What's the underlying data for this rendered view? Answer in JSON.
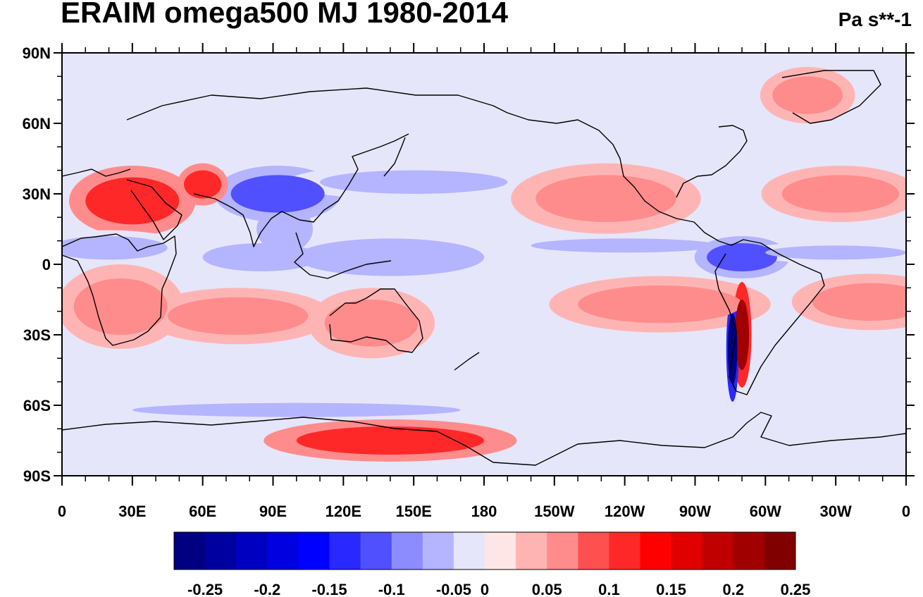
{
  "title": "ERAIM omega500 MJ 1980-2014",
  "units": "Pa s**-1",
  "map": {
    "projection": "cylindrical-equidistant",
    "center_longitude": 180,
    "lat_range": [
      -90,
      90
    ],
    "lon_range": [
      0,
      360
    ],
    "y_tick_labels": [
      {
        "lat": 90,
        "label": "90N"
      },
      {
        "lat": 60,
        "label": "60N"
      },
      {
        "lat": 30,
        "label": "30N"
      },
      {
        "lat": 0,
        "label": "0"
      },
      {
        "lat": -30,
        "label": "30S"
      },
      {
        "lat": -60,
        "label": "60S"
      },
      {
        "lat": -90,
        "label": "90S"
      }
    ],
    "x_tick_labels": [
      {
        "lon": 0,
        "label": "0"
      },
      {
        "lon": 30,
        "label": "30E"
      },
      {
        "lon": 60,
        "label": "60E"
      },
      {
        "lon": 90,
        "label": "90E"
      },
      {
        "lon": 120,
        "label": "120E"
      },
      {
        "lon": 150,
        "label": "150E"
      },
      {
        "lon": 180,
        "label": "180"
      },
      {
        "lon": 210,
        "label": "150W"
      },
      {
        "lon": 240,
        "label": "120W"
      },
      {
        "lon": 270,
        "label": "90W"
      },
      {
        "lon": 300,
        "label": "60W"
      },
      {
        "lon": 330,
        "label": "30W"
      },
      {
        "lon": 360,
        "label": "0"
      }
    ],
    "background_color": "#e6e6fa",
    "coastline_color": "#000000"
  },
  "colorbar": {
    "colors": [
      "#000080",
      "#0000a0",
      "#0000c0",
      "#0000e0",
      "#0000ff",
      "#2828ff",
      "#5050ff",
      "#8c8cff",
      "#b4b4ff",
      "#e6e6fa",
      "#ffe6e6",
      "#ffb4b4",
      "#ff8c8c",
      "#ff5050",
      "#ff2828",
      "#ff0000",
      "#e00000",
      "#c00000",
      "#a00000",
      "#800000"
    ],
    "labels": [
      "-0.25",
      "-0.2",
      "-0.15",
      "-0.1",
      "-0.05",
      "0",
      "0.05",
      "0.1",
      "0.15",
      "0.2",
      "0.25"
    ],
    "label_after_box_index": [
      1,
      3,
      5,
      7,
      9,
      10,
      12,
      14,
      16,
      18,
      20
    ]
  },
  "regions": [
    {
      "name": "arabia-subsidence",
      "value": 0.1,
      "lon": 30,
      "lat": 27,
      "rx": 20,
      "ry": 10
    },
    {
      "name": "africa-itcz-ascent",
      "value": -0.05,
      "lon": 20,
      "lat": 7,
      "rx": 25,
      "ry": 5
    },
    {
      "name": "southern-africa-subsidence",
      "value": 0.05,
      "lon": 25,
      "lat": -18,
      "rx": 20,
      "ry": 12
    },
    {
      "name": "indian-ocean-subsidence",
      "value": 0.05,
      "lon": 75,
      "lat": -22,
      "rx": 30,
      "ry": 8
    },
    {
      "name": "indian-ocean-itcz",
      "value": -0.05,
      "lon": 85,
      "lat": 3,
      "rx": 25,
      "ry": 6
    },
    {
      "name": "bay-of-bengal-ascent",
      "value": -0.05,
      "lon": 95,
      "lat": 15,
      "rx": 12,
      "ry": 10
    },
    {
      "name": "tibet-ascent",
      "value": -0.1,
      "lon": 92,
      "lat": 30,
      "rx": 20,
      "ry": 8
    },
    {
      "name": "iran-subsidence",
      "value": 0.1,
      "lon": 60,
      "lat": 34,
      "rx": 8,
      "ry": 6
    },
    {
      "name": "maritime-continent-ascent",
      "value": -0.05,
      "lon": 140,
      "lat": 3,
      "rx": 40,
      "ry": 8
    },
    {
      "name": "east-asia-front-ascent",
      "value": -0.05,
      "lon": 150,
      "lat": 35,
      "rx": 40,
      "ry": 5
    },
    {
      "name": "australia-subsidence",
      "value": 0.05,
      "lon": 132,
      "lat": -25,
      "rx": 20,
      "ry": 10
    },
    {
      "name": "east-pacific-itcz",
      "value": -0.05,
      "lon": 240,
      "lat": 8,
      "rx": 40,
      "ry": 3
    },
    {
      "name": "north-pacific-subsidence",
      "value": 0.05,
      "lon": 232,
      "lat": 28,
      "rx": 30,
      "ry": 10
    },
    {
      "name": "south-pacific-subsidence",
      "value": 0.05,
      "lon": 255,
      "lat": -17,
      "rx": 35,
      "ry": 8
    },
    {
      "name": "amazon-ascent",
      "value": -0.1,
      "lon": 290,
      "lat": 3,
      "rx": 15,
      "ry": 6
    },
    {
      "name": "andes-subsidence",
      "value": 0.2,
      "lon": 290,
      "lat": -30,
      "rx": 3,
      "ry": 15
    },
    {
      "name": "andes-ascent",
      "value": -0.25,
      "lon": 286,
      "lat": -36,
      "rx": 2,
      "ry": 15
    },
    {
      "name": "north-atlantic-subsidence",
      "value": 0.05,
      "lon": 332,
      "lat": 30,
      "rx": 25,
      "ry": 8
    },
    {
      "name": "south-atlantic-subsidence",
      "value": 0.05,
      "lon": 345,
      "lat": -16,
      "rx": 25,
      "ry": 8
    },
    {
      "name": "atlantic-itcz",
      "value": -0.05,
      "lon": 330,
      "lat": 5,
      "rx": 30,
      "ry": 3
    },
    {
      "name": "southern-ocean-ascent",
      "value": -0.05,
      "lon": 100,
      "lat": -62,
      "rx": 70,
      "ry": 3
    },
    {
      "name": "antarctica-subsidence",
      "value": 0.1,
      "lon": 140,
      "lat": -75,
      "rx": 40,
      "ry": 6
    },
    {
      "name": "greenland-subsidence",
      "value": 0.05,
      "lon": 318,
      "lat": 72,
      "rx": 15,
      "ry": 8
    }
  ]
}
